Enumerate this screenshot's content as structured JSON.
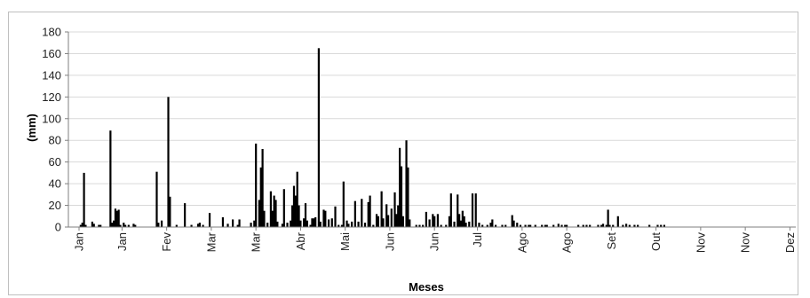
{
  "chart_data": {
    "type": "bar",
    "title": "",
    "xlabel": "Meses",
    "ylabel": "(mm)",
    "ylim": [
      0,
      180
    ],
    "yticks": [
      0,
      20,
      40,
      60,
      80,
      100,
      120,
      140,
      160,
      180
    ],
    "grid": "horizontal",
    "legend": "none",
    "bar_color": "#000000",
    "days": 365,
    "month_ticks": [
      {
        "day": 0,
        "label": "Jan"
      },
      {
        "day": 26,
        "label": "Jan"
      },
      {
        "day": 53,
        "label": "Fev"
      },
      {
        "day": 80,
        "label": "Mar"
      },
      {
        "day": 107,
        "label": "Mar"
      },
      {
        "day": 134,
        "label": "Abr"
      },
      {
        "day": 161,
        "label": "Mai"
      },
      {
        "day": 188,
        "label": "Jun"
      },
      {
        "day": 215,
        "label": "Jun"
      },
      {
        "day": 241,
        "label": "Jul"
      },
      {
        "day": 268,
        "label": "Ago"
      },
      {
        "day": 295,
        "label": "Ago"
      },
      {
        "day": 322,
        "label": "Set"
      },
      {
        "day": 349,
        "label": "Out"
      },
      {
        "day": 376,
        "label": "Nov"
      },
      {
        "day": 403,
        "label": "Nov"
      },
      {
        "day": 430,
        "label": "Dez"
      }
    ],
    "x_range": [
      0,
      440
    ],
    "daily_values": [
      {
        "x": 1,
        "v": 2
      },
      {
        "x": 2,
        "v": 4
      },
      {
        "x": 3,
        "v": 50
      },
      {
        "x": 4,
        "v": 2
      },
      {
        "x": 8,
        "v": 5
      },
      {
        "x": 9,
        "v": 3
      },
      {
        "x": 12,
        "v": 2
      },
      {
        "x": 13,
        "v": 2
      },
      {
        "x": 19,
        "v": 89
      },
      {
        "x": 20,
        "v": 4
      },
      {
        "x": 21,
        "v": 6
      },
      {
        "x": 22,
        "v": 17
      },
      {
        "x": 23,
        "v": 15
      },
      {
        "x": 24,
        "v": 16
      },
      {
        "x": 25,
        "v": 2
      },
      {
        "x": 27,
        "v": 4
      },
      {
        "x": 28,
        "v": 2
      },
      {
        "x": 30,
        "v": 2
      },
      {
        "x": 33,
        "v": 3
      },
      {
        "x": 34,
        "v": 2
      },
      {
        "x": 47,
        "v": 51
      },
      {
        "x": 48,
        "v": 4
      },
      {
        "x": 50,
        "v": 6
      },
      {
        "x": 54,
        "v": 120
      },
      {
        "x": 55,
        "v": 28
      },
      {
        "x": 59,
        "v": 2
      },
      {
        "x": 64,
        "v": 22
      },
      {
        "x": 68,
        "v": 2
      },
      {
        "x": 72,
        "v": 3
      },
      {
        "x": 73,
        "v": 4
      },
      {
        "x": 75,
        "v": 2
      },
      {
        "x": 79,
        "v": 13
      },
      {
        "x": 87,
        "v": 9
      },
      {
        "x": 90,
        "v": 3
      },
      {
        "x": 93,
        "v": 7
      },
      {
        "x": 96,
        "v": 2
      },
      {
        "x": 97,
        "v": 7
      },
      {
        "x": 104,
        "v": 4
      },
      {
        "x": 106,
        "v": 6
      },
      {
        "x": 107,
        "v": 77
      },
      {
        "x": 109,
        "v": 25
      },
      {
        "x": 110,
        "v": 55
      },
      {
        "x": 111,
        "v": 72
      },
      {
        "x": 112,
        "v": 15
      },
      {
        "x": 114,
        "v": 4
      },
      {
        "x": 116,
        "v": 33
      },
      {
        "x": 117,
        "v": 15
      },
      {
        "x": 118,
        "v": 29
      },
      {
        "x": 119,
        "v": 25
      },
      {
        "x": 120,
        "v": 5
      },
      {
        "x": 123,
        "v": 3
      },
      {
        "x": 124,
        "v": 35
      },
      {
        "x": 126,
        "v": 4
      },
      {
        "x": 128,
        "v": 6
      },
      {
        "x": 129,
        "v": 20
      },
      {
        "x": 130,
        "v": 38
      },
      {
        "x": 131,
        "v": 29
      },
      {
        "x": 132,
        "v": 51
      },
      {
        "x": 133,
        "v": 20
      },
      {
        "x": 134,
        "v": 6
      },
      {
        "x": 136,
        "v": 8
      },
      {
        "x": 137,
        "v": 22
      },
      {
        "x": 138,
        "v": 6
      },
      {
        "x": 140,
        "v": 2
      },
      {
        "x": 141,
        "v": 8
      },
      {
        "x": 142,
        "v": 8
      },
      {
        "x": 143,
        "v": 9
      },
      {
        "x": 145,
        "v": 165
      },
      {
        "x": 146,
        "v": 5
      },
      {
        "x": 148,
        "v": 16
      },
      {
        "x": 149,
        "v": 15
      },
      {
        "x": 151,
        "v": 7
      },
      {
        "x": 153,
        "v": 8
      },
      {
        "x": 155,
        "v": 19
      },
      {
        "x": 157,
        "v": 2
      },
      {
        "x": 159,
        "v": 2
      },
      {
        "x": 160,
        "v": 42
      },
      {
        "x": 162,
        "v": 6
      },
      {
        "x": 163,
        "v": 3
      },
      {
        "x": 165,
        "v": 5
      },
      {
        "x": 167,
        "v": 24
      },
      {
        "x": 169,
        "v": 5
      },
      {
        "x": 171,
        "v": 26
      },
      {
        "x": 173,
        "v": 4
      },
      {
        "x": 175,
        "v": 23
      },
      {
        "x": 176,
        "v": 29
      },
      {
        "x": 178,
        "v": 2
      },
      {
        "x": 180,
        "v": 12
      },
      {
        "x": 181,
        "v": 10
      },
      {
        "x": 183,
        "v": 33
      },
      {
        "x": 184,
        "v": 8
      },
      {
        "x": 186,
        "v": 21
      },
      {
        "x": 187,
        "v": 11
      },
      {
        "x": 189,
        "v": 17
      },
      {
        "x": 191,
        "v": 32
      },
      {
        "x": 192,
        "v": 12
      },
      {
        "x": 193,
        "v": 20
      },
      {
        "x": 194,
        "v": 73
      },
      {
        "x": 195,
        "v": 56
      },
      {
        "x": 196,
        "v": 10
      },
      {
        "x": 198,
        "v": 80
      },
      {
        "x": 199,
        "v": 55
      },
      {
        "x": 200,
        "v": 7
      },
      {
        "x": 204,
        "v": 2
      },
      {
        "x": 206,
        "v": 2
      },
      {
        "x": 208,
        "v": 2
      },
      {
        "x": 210,
        "v": 14
      },
      {
        "x": 212,
        "v": 7
      },
      {
        "x": 214,
        "v": 12
      },
      {
        "x": 215,
        "v": 10
      },
      {
        "x": 217,
        "v": 12
      },
      {
        "x": 219,
        "v": 2
      },
      {
        "x": 222,
        "v": 2
      },
      {
        "x": 224,
        "v": 10
      },
      {
        "x": 225,
        "v": 31
      },
      {
        "x": 227,
        "v": 5
      },
      {
        "x": 229,
        "v": 30
      },
      {
        "x": 230,
        "v": 12
      },
      {
        "x": 231,
        "v": 6
      },
      {
        "x": 232,
        "v": 15
      },
      {
        "x": 233,
        "v": 10
      },
      {
        "x": 234,
        "v": 4
      },
      {
        "x": 236,
        "v": 5
      },
      {
        "x": 238,
        "v": 31
      },
      {
        "x": 240,
        "v": 31
      },
      {
        "x": 242,
        "v": 4
      },
      {
        "x": 244,
        "v": 2
      },
      {
        "x": 247,
        "v": 2
      },
      {
        "x": 249,
        "v": 4
      },
      {
        "x": 250,
        "v": 7
      },
      {
        "x": 252,
        "v": 2
      },
      {
        "x": 256,
        "v": 2
      },
      {
        "x": 258,
        "v": 2
      },
      {
        "x": 262,
        "v": 11
      },
      {
        "x": 263,
        "v": 6
      },
      {
        "x": 265,
        "v": 4
      },
      {
        "x": 267,
        "v": 2
      },
      {
        "x": 270,
        "v": 2
      },
      {
        "x": 272,
        "v": 2
      },
      {
        "x": 273,
        "v": 2
      },
      {
        "x": 276,
        "v": 2
      },
      {
        "x": 280,
        "v": 2
      },
      {
        "x": 282,
        "v": 2
      },
      {
        "x": 283,
        "v": 2
      },
      {
        "x": 287,
        "v": 2
      },
      {
        "x": 290,
        "v": 3
      },
      {
        "x": 292,
        "v": 2
      },
      {
        "x": 294,
        "v": 2
      },
      {
        "x": 295,
        "v": 2
      },
      {
        "x": 302,
        "v": 2
      },
      {
        "x": 305,
        "v": 2
      },
      {
        "x": 307,
        "v": 2
      },
      {
        "x": 309,
        "v": 2
      },
      {
        "x": 314,
        "v": 2
      },
      {
        "x": 316,
        "v": 2
      },
      {
        "x": 317,
        "v": 3
      },
      {
        "x": 319,
        "v": 2
      },
      {
        "x": 320,
        "v": 16
      },
      {
        "x": 321,
        "v": 2
      },
      {
        "x": 323,
        "v": 2
      },
      {
        "x": 326,
        "v": 10
      },
      {
        "x": 329,
        "v": 2
      },
      {
        "x": 331,
        "v": 3
      },
      {
        "x": 333,
        "v": 2
      },
      {
        "x": 336,
        "v": 2
      },
      {
        "x": 338,
        "v": 2
      },
      {
        "x": 345,
        "v": 2
      },
      {
        "x": 350,
        "v": 2
      },
      {
        "x": 352,
        "v": 2
      },
      {
        "x": 354,
        "v": 2
      }
    ]
  }
}
